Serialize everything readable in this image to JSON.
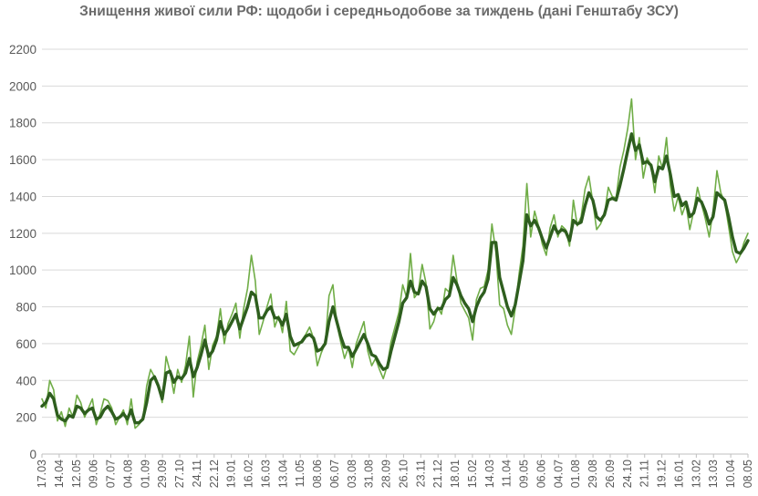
{
  "chart_data": {
    "type": "line",
    "title": "Знищення живої сили РФ: щодоби і середньодобове за тиждень (дані Генштабу ЗСУ)",
    "xlabel": "",
    "ylabel": "",
    "ylim": [
      0,
      2200
    ],
    "y_ticks": [
      0,
      200,
      400,
      600,
      800,
      1000,
      1200,
      1400,
      1600,
      1800,
      2000,
      2200
    ],
    "grid": true,
    "legend": "none",
    "colors": {
      "daily": "#70ad47",
      "weekly": "#2e5e1e",
      "grid": "#d9d9d9",
      "ticklabel": "#595959"
    },
    "x_tick_labels": [
      "17.03",
      "14.04",
      "12.05",
      "09.06",
      "07.07",
      "04.08",
      "01.09",
      "29.09",
      "27.10",
      "24.11",
      "22.12",
      "19.01",
      "16.02",
      "16.03",
      "13.04",
      "11.05",
      "08.06",
      "06.07",
      "03.08",
      "31.08",
      "28.09",
      "26.10",
      "23.11",
      "21.12",
      "18.01",
      "15.02",
      "14.03",
      "11.04",
      "09.05",
      "06.06",
      "04.07",
      "01.08",
      "29.08",
      "26.09",
      "24.10",
      "21.11",
      "19.12",
      "16.01",
      "13.02",
      "13.03",
      "10.04",
      "08.05"
    ],
    "series": [
      {
        "key": "daily",
        "values": [
          300,
          250,
          400,
          350,
          180,
          230,
          150,
          250,
          200,
          320,
          280,
          200,
          250,
          300,
          160,
          220,
          300,
          290,
          250,
          160,
          200,
          240,
          160,
          300,
          140,
          160,
          190,
          370,
          460,
          420,
          380,
          280,
          530,
          450,
          330,
          460,
          390,
          480,
          640,
          310,
          500,
          590,
          700,
          460,
          590,
          640,
          790,
          600,
          710,
          760,
          820,
          630,
          790,
          900,
          1080,
          940,
          650,
          720,
          800,
          870,
          690,
          750,
          660,
          830,
          560,
          540,
          580,
          620,
          650,
          690,
          630,
          480,
          550,
          600,
          860,
          920,
          710,
          610,
          520,
          580,
          470,
          600,
          660,
          720,
          560,
          480,
          520,
          460,
          410,
          480,
          610,
          690,
          770,
          920,
          850,
          1090,
          850,
          880,
          1030,
          930,
          680,
          720,
          800,
          760,
          900,
          880,
          1080,
          940,
          820,
          780,
          740,
          620,
          840,
          900,
          910,
          1000,
          1250,
          1100,
          810,
          790,
          700,
          650,
          790,
          980,
          1130,
          1470,
          1180,
          1320,
          1240,
          1140,
          1080,
          1230,
          1300,
          1180,
          1240,
          1220,
          1130,
          1380,
          1240,
          1290,
          1440,
          1510,
          1370,
          1220,
          1250,
          1300,
          1450,
          1400,
          1390,
          1560,
          1650,
          1770,
          1930,
          1600,
          1720,
          1500,
          1610,
          1570,
          1420,
          1620,
          1550,
          1720,
          1460,
          1320,
          1400,
          1300,
          1360,
          1220,
          1320,
          1450,
          1360,
          1280,
          1180,
          1320,
          1540,
          1420,
          1370,
          1240,
          1100,
          1040,
          1080,
          1150,
          1200
        ]
      },
      {
        "key": "weekly",
        "values": [
          260,
          280,
          330,
          300,
          210,
          190,
          180,
          210,
          200,
          260,
          250,
          220,
          240,
          250,
          190,
          200,
          240,
          260,
          230,
          190,
          200,
          220,
          190,
          240,
          170,
          170,
          190,
          280,
          400,
          420,
          370,
          300,
          440,
          450,
          390,
          420,
          410,
          440,
          520,
          420,
          470,
          540,
          620,
          530,
          560,
          620,
          720,
          650,
          680,
          720,
          760,
          680,
          740,
          800,
          880,
          860,
          740,
          740,
          780,
          800,
          740,
          740,
          700,
          760,
          640,
          590,
          600,
          610,
          640,
          650,
          630,
          560,
          570,
          600,
          720,
          800,
          720,
          640,
          580,
          580,
          530,
          570,
          610,
          650,
          600,
          540,
          530,
          490,
          460,
          470,
          560,
          640,
          720,
          820,
          850,
          940,
          880,
          870,
          940,
          910,
          790,
          760,
          790,
          790,
          840,
          860,
          960,
          920,
          860,
          820,
          790,
          720,
          800,
          850,
          880,
          950,
          1150,
          1150,
          960,
          880,
          800,
          750,
          810,
          930,
          1050,
          1300,
          1240,
          1270,
          1230,
          1170,
          1120,
          1180,
          1240,
          1200,
          1220,
          1210,
          1160,
          1270,
          1250,
          1260,
          1350,
          1420,
          1380,
          1290,
          1270,
          1300,
          1380,
          1390,
          1380,
          1460,
          1550,
          1650,
          1740,
          1650,
          1680,
          1580,
          1590,
          1570,
          1480,
          1560,
          1550,
          1620,
          1520,
          1400,
          1410,
          1350,
          1370,
          1290,
          1310,
          1390,
          1370,
          1320,
          1250,
          1290,
          1420,
          1400,
          1380,
          1290,
          1180,
          1100,
          1090,
          1120,
          1160
        ]
      }
    ]
  }
}
